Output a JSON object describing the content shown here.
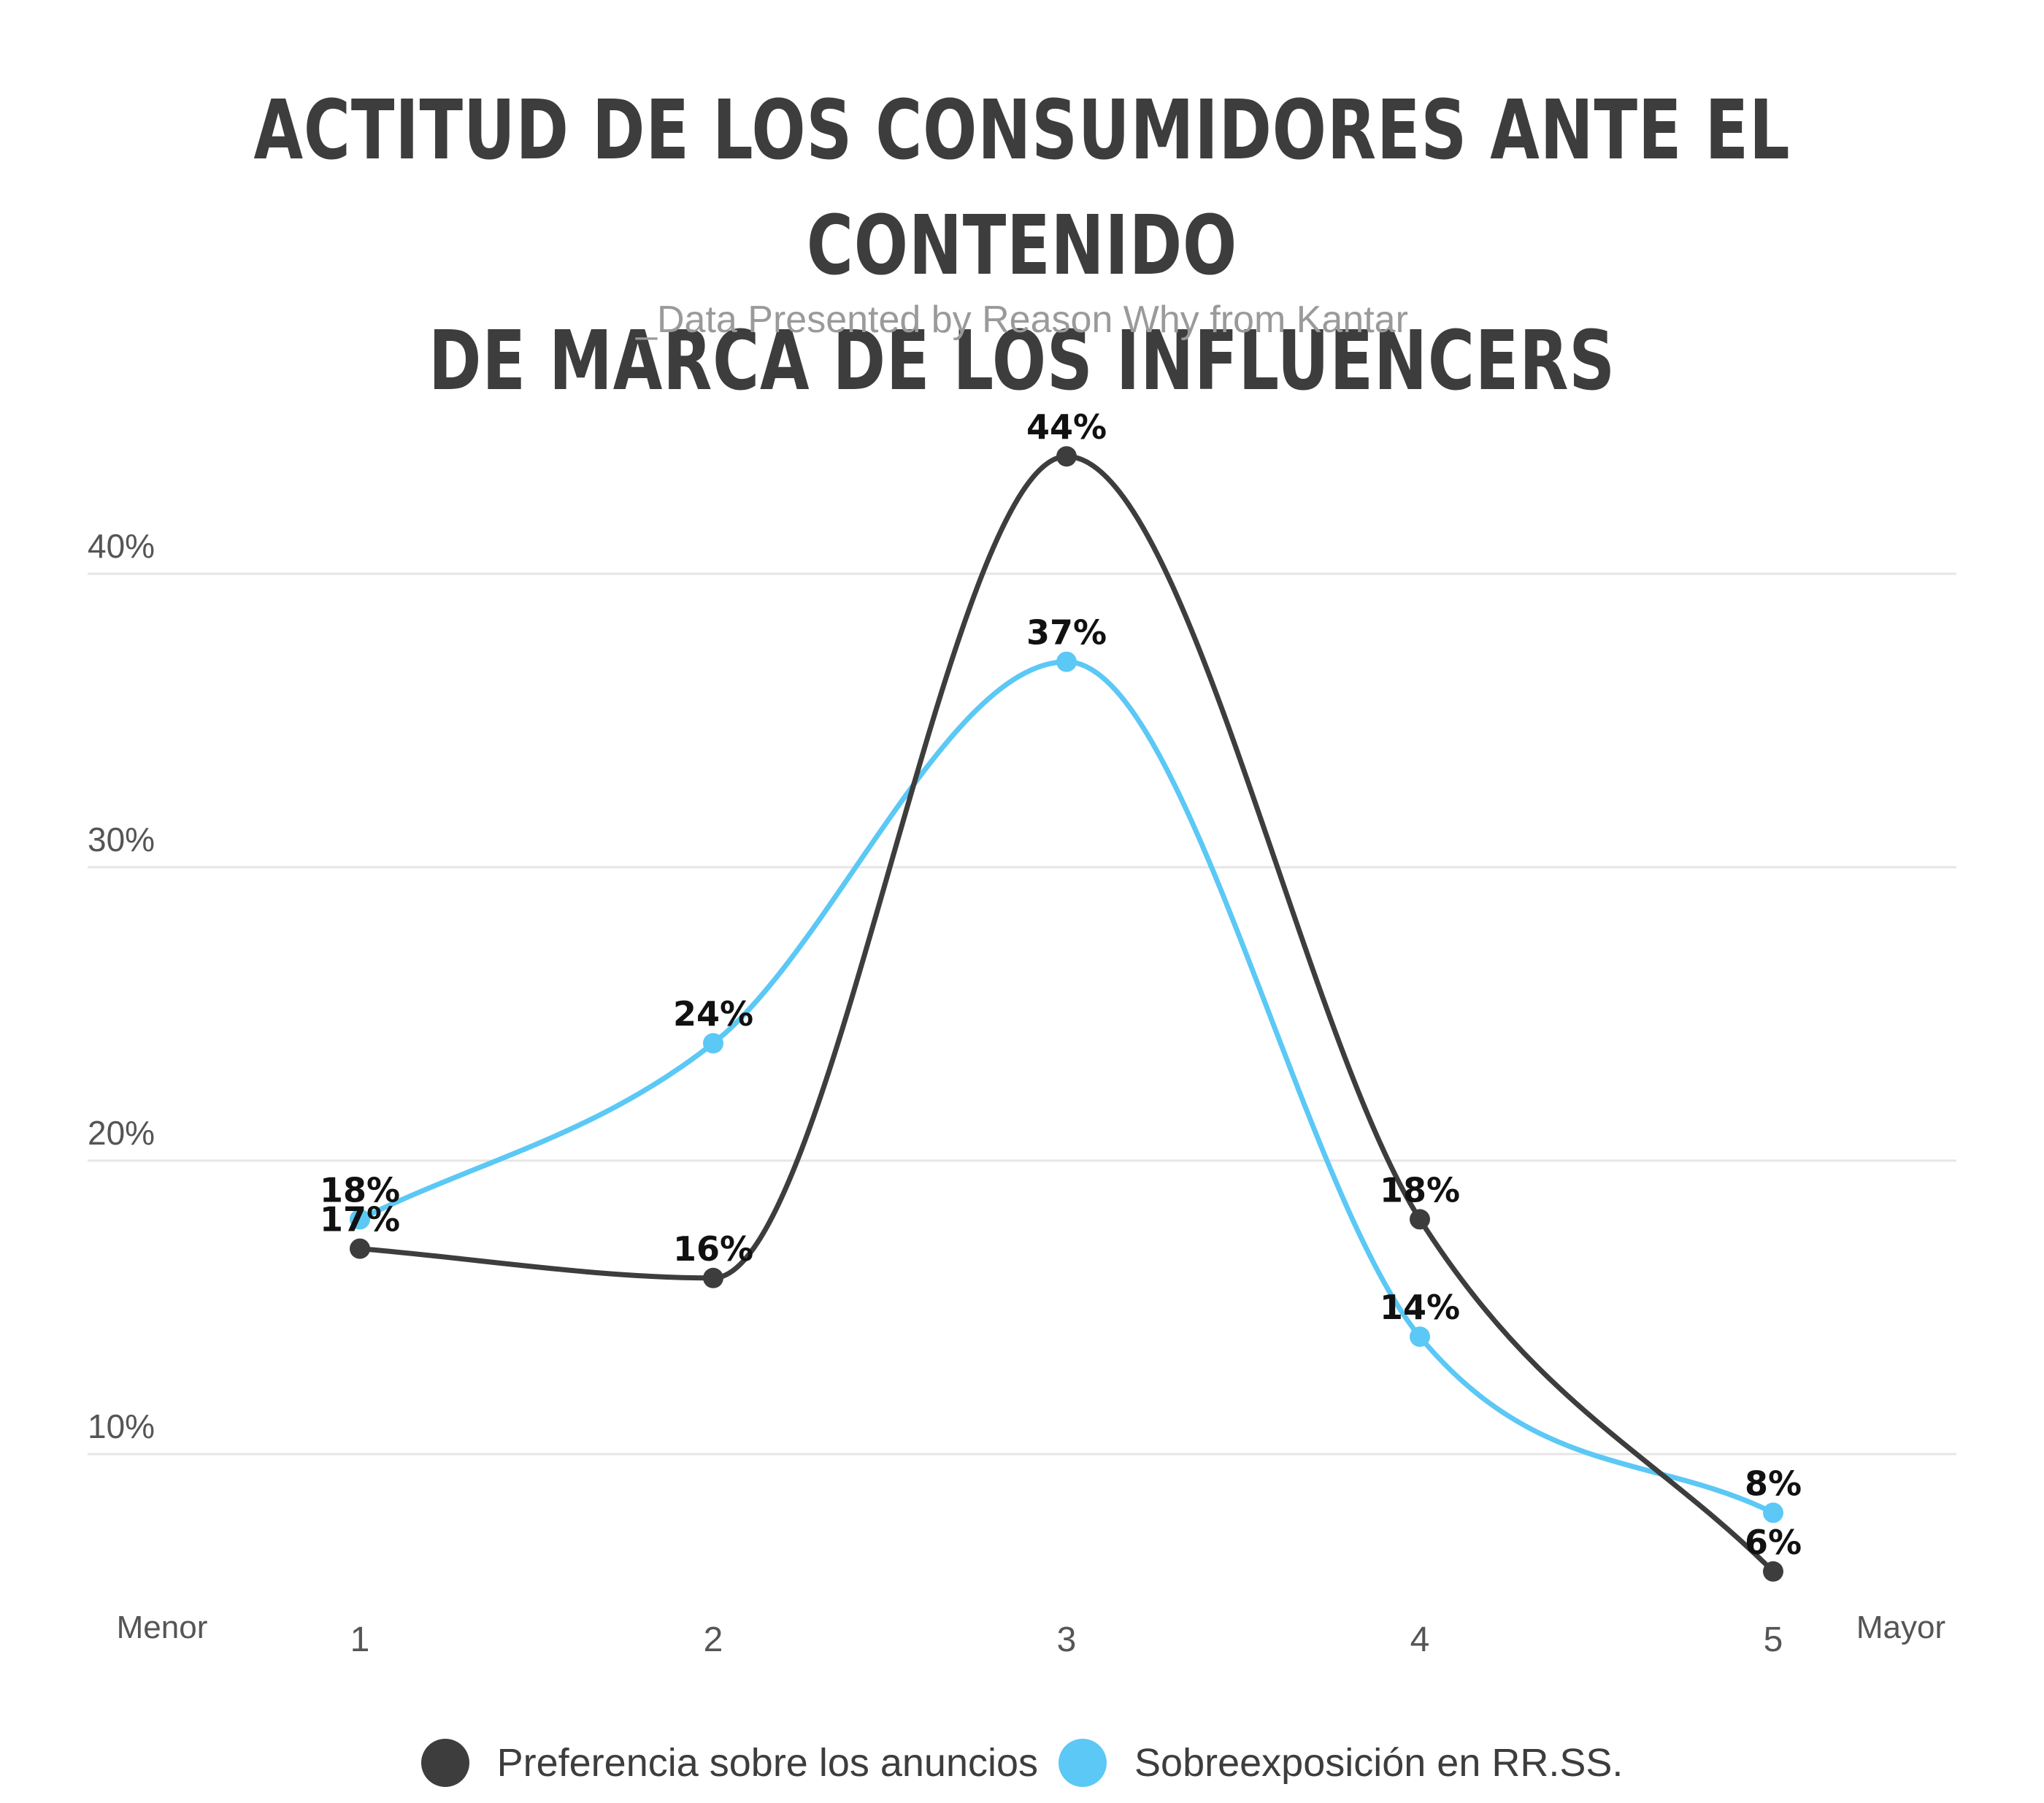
{
  "title_line1": "ACTITUD DE LOS CONSUMIDORES ANTE EL CONTENIDO",
  "title_line2": "DE MARCA DE LOS INFLUENCERS",
  "subtitle": "_Data Presented by Reason Why from Kantar",
  "colors": {
    "dark": "#3d3d3d",
    "blue": "#5bc8f5",
    "grid": "#e6e6e6",
    "text": "#3d3d3d"
  },
  "chart_data": {
    "type": "line",
    "x": [
      1,
      2,
      3,
      4,
      5
    ],
    "x_start_label": "Menor",
    "x_end_label": "Mayor",
    "y_ticks": [
      10,
      20,
      30,
      40
    ],
    "y_tick_labels": [
      "10%",
      "20%",
      "30%",
      "40%"
    ],
    "grid": true,
    "smooth": true,
    "legend_position": "bottom",
    "series": [
      {
        "name": "Preferencia sobre los anuncios",
        "color": "#3d3d3d",
        "values": [
          17,
          16,
          44,
          18,
          6
        ],
        "labels": [
          "17%",
          "16%",
          "44%",
          "18%",
          "6%"
        ]
      },
      {
        "name": "Sobreexposición en RR.SS.",
        "color": "#5bc8f5",
        "values": [
          18,
          24,
          37,
          14,
          8
        ],
        "labels": [
          "18%",
          "24%",
          "37%",
          "14%",
          "8%"
        ]
      }
    ]
  }
}
